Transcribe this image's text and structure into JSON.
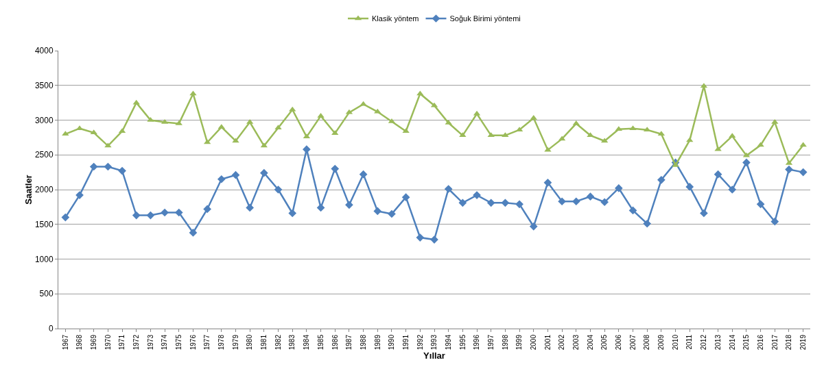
{
  "chart_data": {
    "type": "line",
    "xlabel": "Yıllar",
    "ylabel": "Saatler",
    "categories": [
      "1967",
      "1968",
      "1969",
      "1970",
      "1971",
      "1972",
      "1973",
      "1974",
      "1975",
      "1976",
      "1977",
      "1978",
      "1979",
      "1980",
      "1981",
      "1982",
      "1983",
      "1984",
      "1985",
      "1986",
      "1987",
      "1988",
      "1989",
      "1990",
      "1991",
      "1992",
      "1993",
      "1994",
      "1995",
      "1996",
      "1997",
      "1998",
      "1999",
      "2000",
      "2001",
      "2002",
      "2003",
      "2004",
      "2005",
      "2006",
      "2007",
      "2008",
      "2009",
      "2010",
      "2011",
      "2012",
      "2013",
      "2014",
      "2015",
      "2016",
      "2017",
      "2018",
      "2019"
    ],
    "series": [
      {
        "name": "Klasik yöntem",
        "color": "#9bbb59",
        "marker": "triangle",
        "values": [
          2800,
          2880,
          2820,
          2630,
          2840,
          3250,
          3000,
          2970,
          2950,
          3380,
          2680,
          2900,
          2700,
          2970,
          2630,
          2890,
          3150,
          2760,
          3060,
          2810,
          3110,
          3230,
          3120,
          2980,
          2840,
          3380,
          3210,
          2960,
          2780,
          3090,
          2780,
          2780,
          2860,
          3030,
          2570,
          2730,
          2950,
          2780,
          2700,
          2870,
          2880,
          2860,
          2800,
          2350,
          2710,
          3490,
          2580,
          2770,
          2490,
          2640,
          2970,
          2380,
          2640
        ]
      },
      {
        "name": "Soğuk Birimi yöntemi",
        "color": "#4f81bd",
        "marker": "diamond",
        "values": [
          1600,
          1920,
          2330,
          2330,
          2270,
          1630,
          1630,
          1670,
          1670,
          1380,
          1720,
          2150,
          2210,
          1740,
          2240,
          2000,
          1660,
          2580,
          1740,
          2300,
          1780,
          2220,
          1690,
          1650,
          1890,
          1310,
          1280,
          2010,
          1810,
          1920,
          1810,
          1810,
          1790,
          1470,
          2100,
          1830,
          1830,
          1900,
          1820,
          2020,
          1700,
          1510,
          2140,
          2390,
          2040,
          1660,
          2220,
          2000,
          2390,
          1790,
          1540,
          2290,
          2250
        ]
      }
    ],
    "ylim": [
      0,
      4000
    ],
    "yticks": [
      0,
      500,
      1000,
      1500,
      2000,
      2500,
      3000,
      3500,
      4000
    ],
    "grid": "y",
    "legend": "top",
    "line_style": "solid"
  }
}
